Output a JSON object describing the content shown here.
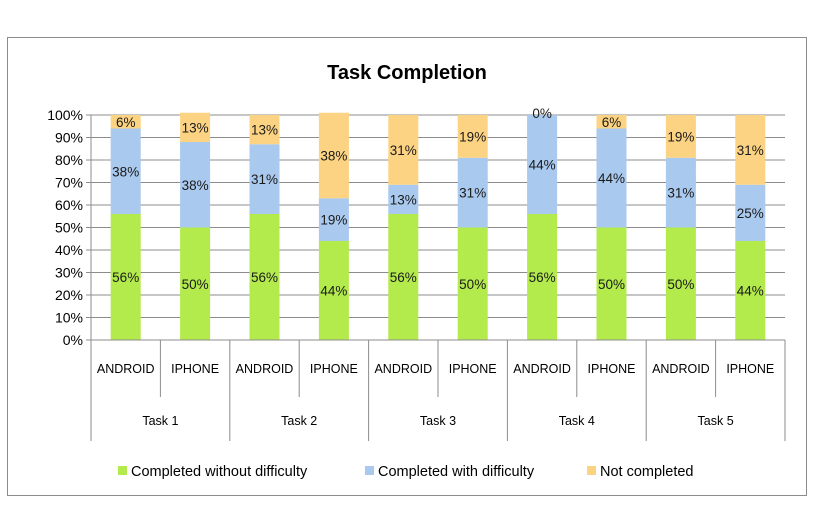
{
  "chart_data": {
    "type": "bar",
    "stacked": true,
    "title": "Task Completion",
    "groups": [
      "Task 1",
      "Task 2",
      "Task 3",
      "Task 4",
      "Task 5"
    ],
    "categories": [
      "ANDROID",
      "IPHONE",
      "ANDROID",
      "IPHONE",
      "ANDROID",
      "IPHONE",
      "ANDROID",
      "IPHONE",
      "ANDROID",
      "IPHONE"
    ],
    "series": [
      {
        "name": "Completed without difficulty",
        "color": "#b3ea4c",
        "values": [
          56,
          50,
          56,
          44,
          56,
          50,
          56,
          50,
          50,
          44
        ]
      },
      {
        "name": "Completed with difficulty",
        "color": "#a9c9ee",
        "values": [
          38,
          38,
          31,
          19,
          13,
          31,
          44,
          44,
          31,
          25
        ]
      },
      {
        "name": "Not completed",
        "color": "#fcd382",
        "values": [
          6,
          13,
          13,
          38,
          31,
          19,
          0,
          6,
          19,
          31
        ]
      }
    ],
    "labels": [
      [
        "56%",
        "50%",
        "56%",
        "44%",
        "56%",
        "50%",
        "56%",
        "50%",
        "50%",
        "44%"
      ],
      [
        "38%",
        "38%",
        "31%",
        "19%",
        "13%",
        "31%",
        "44%",
        "44%",
        "31%",
        "25%"
      ],
      [
        "6%",
        "13%",
        "13%",
        "38%",
        "31%",
        "19%",
        "0%",
        "6%",
        "19%",
        "31%"
      ]
    ],
    "yticks": [
      "0%",
      "10%",
      "20%",
      "30%",
      "40%",
      "50%",
      "60%",
      "70%",
      "80%",
      "90%",
      "100%"
    ],
    "ylim": [
      0,
      100
    ],
    "grid": true,
    "legend_position": "bottom"
  }
}
